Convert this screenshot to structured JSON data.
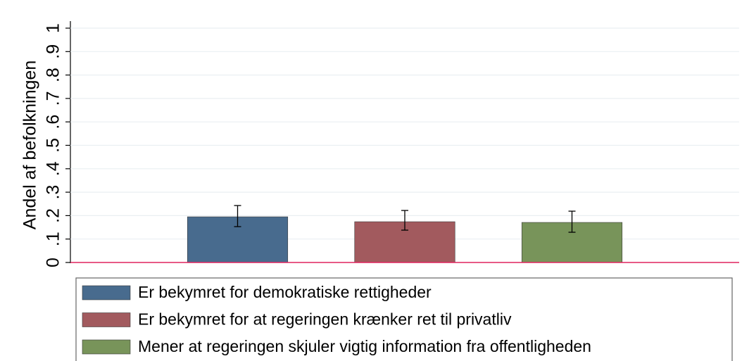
{
  "chart_data": {
    "type": "bar",
    "y_label": "Andel af befolkningen",
    "ylim": [
      0,
      1
    ],
    "yticks": [
      0,
      {
        "value": 0.1,
        "label": ".1"
      },
      {
        "value": 0.2,
        "label": ".2"
      },
      {
        "value": 0.3,
        "label": ".3"
      },
      {
        "value": 0.4,
        "label": ".4"
      },
      {
        "value": 0.5,
        "label": ".5"
      },
      {
        "value": 0.6,
        "label": ".6"
      },
      {
        "value": 0.7,
        "label": ".7"
      },
      {
        "value": 0.8,
        "label": ".8"
      },
      {
        "value": 0.9,
        "label": ".9"
      },
      1
    ],
    "grid": true,
    "series": [
      {
        "name": "Er bekymret for demokratiske rettigheder",
        "color": "#486b8e",
        "values": [
          0.195
        ],
        "lower": [
          0.153
        ],
        "upper": [
          0.243
        ]
      },
      {
        "name": "Er bekymret for at regeringen krænker ret til privatliv",
        "color": "#a25a5e",
        "values": [
          0.174
        ],
        "lower": [
          0.138
        ],
        "upper": [
          0.222
        ]
      },
      {
        "name": "Mener at regeringen skjuler vigtig information fra offentligheden",
        "color": "#78945a",
        "values": [
          0.171
        ],
        "lower": [
          0.129
        ],
        "upper": [
          0.219
        ]
      }
    ]
  }
}
